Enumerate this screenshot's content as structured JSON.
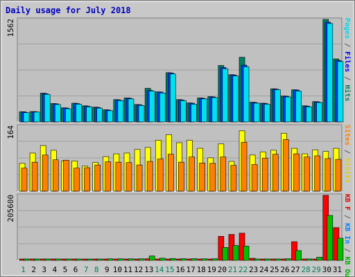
{
  "chart_data": {
    "type": "bar",
    "title": "Daily usage for July 2018",
    "grid": true,
    "categories": [
      "1",
      "2",
      "3",
      "4",
      "5",
      "6",
      "7",
      "8",
      "9",
      "10",
      "11",
      "12",
      "13",
      "14",
      "15",
      "16",
      "17",
      "18",
      "19",
      "20",
      "21",
      "22",
      "23",
      "24",
      "25",
      "26",
      "27",
      "28",
      "29",
      "30",
      "31"
    ],
    "weekend_days": [
      "1",
      "7",
      "8",
      "14",
      "15",
      "21",
      "22",
      "28",
      "29"
    ],
    "panels": [
      {
        "id": "pages-files-hits",
        "ymax_label": "1562",
        "ylim": [
          0,
          1562
        ],
        "axis_label_parts": [
          {
            "text": "Pages",
            "color": "#00d8e8"
          },
          {
            "text": " / ",
            "color": "#555555"
          },
          {
            "text": "Files",
            "color": "#0000ff"
          },
          {
            "text": " / ",
            "color": "#555555"
          },
          {
            "text": "Hits",
            "color": "#00805a"
          }
        ],
        "series": [
          {
            "name": "Hits",
            "color": "#008060",
            "values": [
              155,
              158,
              438,
              280,
              215,
              285,
              245,
              225,
              185,
              340,
              365,
              265,
              512,
              458,
              750,
              340,
              290,
              365,
              385,
              860,
              720,
              985,
              300,
              285,
              505,
              395,
              490,
              245,
              310,
              1562,
              960
            ]
          },
          {
            "name": "Files",
            "color": "#0040ff",
            "values": [
              150,
              155,
              430,
              275,
              210,
              280,
              240,
              220,
              180,
              335,
              360,
              260,
              480,
              455,
              745,
              335,
              285,
              360,
              380,
              830,
              715,
              865,
              295,
              280,
              500,
              390,
              485,
              240,
              305,
              1520,
              935
            ]
          },
          {
            "name": "Pages",
            "color": "#00e0f0",
            "values": [
              140,
              150,
              420,
              265,
              200,
              270,
              230,
              210,
              170,
              325,
              350,
              250,
              470,
              440,
              730,
              325,
              270,
              350,
              370,
              810,
              700,
              840,
              285,
              270,
              490,
              380,
              470,
              230,
              295,
              1500,
              920
            ]
          }
        ]
      },
      {
        "id": "visits-sites",
        "ymax_label": "164",
        "ylim": [
          0,
          164
        ],
        "axis_label_parts": [
          {
            "text": "Sites",
            "color": "#ff8000"
          },
          {
            "text": " / ",
            "color": "#555555"
          },
          {
            "text": "Visits",
            "color": "#e0d000"
          }
        ],
        "series": [
          {
            "name": "Visits",
            "color": "#ffff00",
            "values": [
              70,
              96,
              115,
              103,
              76,
              76,
              63,
              72,
              87,
              94,
              96,
              105,
              110,
              128,
              142,
              122,
              128,
              108,
              84,
              119,
              75,
              152,
              91,
              99,
              103,
              146,
              108,
              94,
              104,
              100,
              108
            ]
          },
          {
            "name": "Sites",
            "color": "#ff8000",
            "values": [
              58,
              73,
              91,
              79,
              78,
              58,
              59,
              66,
              74,
              73,
              72,
              66,
              75,
              81,
              93,
              73,
              86,
              71,
              70,
              86,
              65,
              123,
              67,
              83,
              93,
              130,
              94,
              86,
              89,
              82,
              80
            ]
          }
        ]
      },
      {
        "id": "kb",
        "ymax_label": "205600",
        "ylim": [
          0,
          205600
        ],
        "axis_label_parts": [
          {
            "text": "KB F",
            "color": "#e00000"
          },
          {
            "text": " / ",
            "color": "#555555"
          },
          {
            "text": "KB In",
            "color": "#0080ff"
          },
          {
            "text": " / ",
            "color": "#555555"
          },
          {
            "text": "KB Out",
            "color": "#00b000"
          }
        ],
        "series": [
          {
            "name": "KB F",
            "color": "#ff0000",
            "values": [
              2500,
              2500,
              2500,
              2500,
              2000,
              2000,
              2000,
              2000,
              3000,
              3000,
              3000,
              3000,
              5000,
              3000,
              4000,
              3000,
              3000,
              3000,
              3000,
              76000,
              82000,
              86000,
              6500,
              3000,
              3000,
              3000,
              59000,
              3000,
              4000,
              205600,
              103000
            ]
          },
          {
            "name": "KB In",
            "color": "#0080ff",
            "values": [
              0,
              0,
              0,
              0,
              0,
              0,
              0,
              0,
              0,
              0,
              0,
              0,
              0,
              0,
              0,
              0,
              0,
              0,
              0,
              0,
              0,
              0,
              0,
              0,
              0,
              0,
              0,
              0,
              0,
              0,
              0
            ]
          },
          {
            "name": "KB Out",
            "color": "#00c000",
            "values": [
              4500,
              4500,
              4500,
              4500,
              3000,
              3000,
              3000,
              3000,
              5000,
              5000,
              5000,
              5000,
              14000,
              7000,
              6000,
              5500,
              5500,
              5000,
              5000,
              41000,
              47000,
              45000,
              4500,
              4500,
              4500,
              5000,
              31000,
              4500,
              10000,
              142000,
              70000
            ]
          }
        ]
      }
    ]
  }
}
